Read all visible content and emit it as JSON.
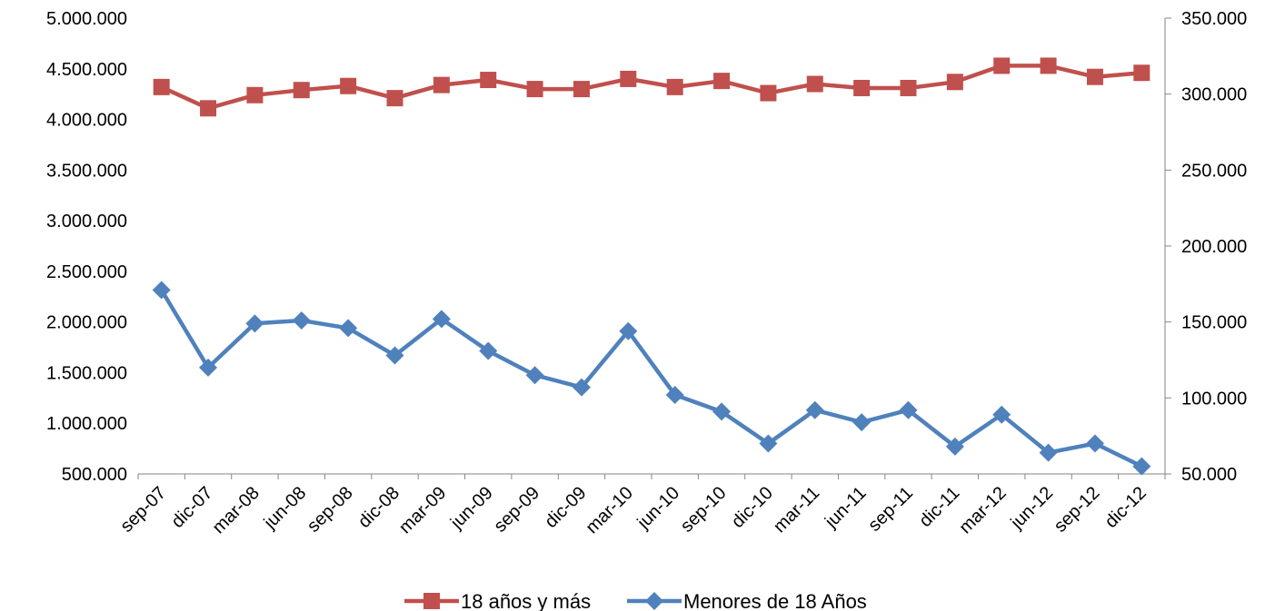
{
  "chart_data": {
    "type": "line",
    "title": "",
    "xlabel": "",
    "ylabel": "",
    "categories": [
      "sep-07",
      "dic-07",
      "mar-08",
      "jun-08",
      "sep-08",
      "dic-08",
      "mar-09",
      "jun-09",
      "sep-09",
      "dic-09",
      "mar-10",
      "jun-10",
      "sep-10",
      "dic-10",
      "mar-11",
      "jun-11",
      "sep-11",
      "dic-11",
      "mar-12",
      "jun-12",
      "sep-12",
      "dic-12"
    ],
    "y_left": {
      "lim": [
        500000,
        5000000
      ],
      "ticks": [
        500000,
        1000000,
        1500000,
        2000000,
        2500000,
        3000000,
        3500000,
        4000000,
        4500000,
        5000000
      ],
      "tick_labels": [
        "500.000",
        "1.000.000",
        "1.500.000",
        "2.000.000",
        "2.500.000",
        "3.000.000",
        "3.500.000",
        "4.000.000",
        "4.500.000",
        "5.000.000"
      ]
    },
    "y_right": {
      "lim": [
        50000,
        350000
      ],
      "ticks": [
        50000,
        100000,
        150000,
        200000,
        250000,
        300000,
        350000
      ],
      "tick_labels": [
        "50.000",
        "100.000",
        "150.000",
        "200.000",
        "250.000",
        "300.000",
        "350.000"
      ]
    },
    "series": [
      {
        "name": "18 años y más",
        "axis": "left",
        "marker": "square",
        "color": "#C0504D",
        "values": [
          4320000,
          4110000,
          4240000,
          4290000,
          4330000,
          4210000,
          4340000,
          4390000,
          4300000,
          4300000,
          4400000,
          4320000,
          4380000,
          4260000,
          4350000,
          4310000,
          4310000,
          4370000,
          4530000,
          4530000,
          4420000,
          4460000
        ]
      },
      {
        "name": "Menores de 18 Años",
        "axis": "right",
        "marker": "diamond",
        "color": "#4F81BD",
        "values": [
          171000,
          120000,
          149000,
          151000,
          146000,
          128000,
          152000,
          131000,
          115000,
          107000,
          144000,
          102000,
          91000,
          70000,
          92000,
          84000,
          92000,
          68000,
          89000,
          64000,
          70000,
          55000
        ]
      }
    ],
    "grid": false,
    "legend_position": "bottom"
  }
}
